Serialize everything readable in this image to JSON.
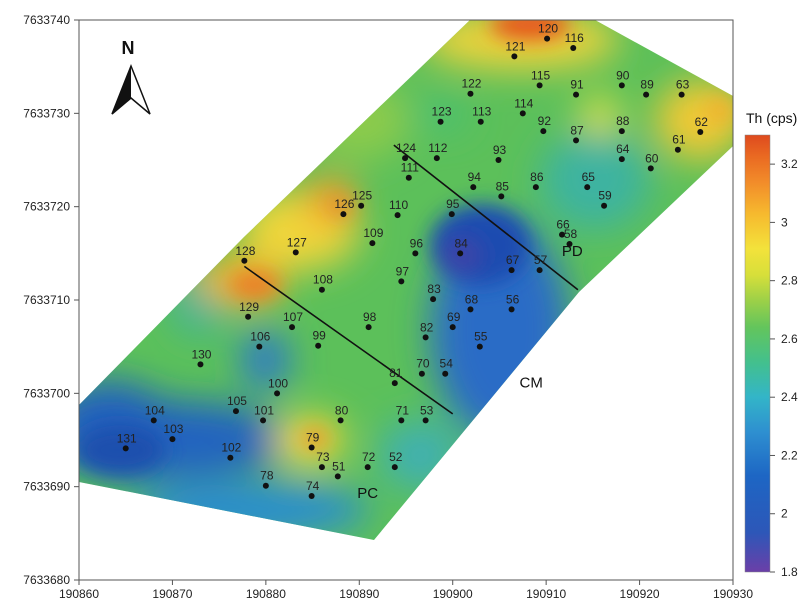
{
  "map": {
    "legend_title": "Th (cps)",
    "north_label": "N",
    "x_ticks": [
      {
        "label": "190860",
        "value": 190860
      },
      {
        "label": "190870",
        "value": 190870
      },
      {
        "label": "190880",
        "value": 190880
      },
      {
        "label": "190890",
        "value": 190890
      },
      {
        "label": "190900",
        "value": 190900
      },
      {
        "label": "190910",
        "value": 190910
      },
      {
        "label": "190920",
        "value": 190920
      },
      {
        "label": "190930",
        "value": 190930
      }
    ],
    "y_ticks": [
      {
        "label": "7633740",
        "value": 7633740
      },
      {
        "label": "7633730",
        "value": 7633730
      },
      {
        "label": "7633720",
        "value": 7633720
      },
      {
        "label": "7633710",
        "value": 7633710
      },
      {
        "label": "7633700",
        "value": 7633700
      },
      {
        "label": "7633690",
        "value": 7633690
      },
      {
        "label": "7633680",
        "value": 7633680
      }
    ],
    "zones": [
      {
        "label": "PD",
        "x": 190912.8,
        "y": 7633714.7
      },
      {
        "label": "CM",
        "x": 190908.4,
        "y": 7633700.6
      },
      {
        "label": "PC",
        "x": 190890.9,
        "y": 7633688.8
      }
    ],
    "colorbar": {
      "min": 1.8,
      "max": 3.3,
      "ticks": [
        {
          "label": "1.8",
          "value": 1.8
        },
        {
          "label": "2",
          "value": 2.0
        },
        {
          "label": "2.2",
          "value": 2.2
        },
        {
          "label": "2.4",
          "value": 2.4
        },
        {
          "label": "2.6",
          "value": 2.6
        },
        {
          "label": "2.8",
          "value": 2.8
        },
        {
          "label": "3",
          "value": 3.0
        },
        {
          "label": "3.2",
          "value": 3.2
        }
      ],
      "colors": [
        "#6b3fa8",
        "#2d57b8",
        "#1d66c4",
        "#2e8fd0",
        "#33b5c8",
        "#43c08d",
        "#63c55c",
        "#9bd048",
        "#d7df3a",
        "#f3e23b",
        "#f6b92e",
        "#f28d2a",
        "#ea6a22",
        "#de4a1e"
      ]
    },
    "profile_lines": [
      {
        "from": {
          "x": 190893.7,
          "y": 7633726.6
        },
        "to": {
          "x": 190913.4,
          "y": 7633711.1
        }
      },
      {
        "from": {
          "x": 190877.7,
          "y": 7633713.6
        },
        "to": {
          "x": 190900.0,
          "y": 7633697.8
        }
      }
    ],
    "points": [
      {
        "id": "120",
        "x": 190910.1,
        "y": 7633738.0
      },
      {
        "id": "121",
        "x": 190906.6,
        "y": 7633736.1
      },
      {
        "id": "116",
        "x": 190912.9,
        "y": 7633737.0
      },
      {
        "id": "115",
        "x": 190909.3,
        "y": 7633733.0
      },
      {
        "id": "91",
        "x": 190913.2,
        "y": 7633732.0
      },
      {
        "id": "90",
        "x": 190918.1,
        "y": 7633733.0
      },
      {
        "id": "89",
        "x": 190920.7,
        "y": 7633732.0
      },
      {
        "id": "63",
        "x": 190924.5,
        "y": 7633732.0
      },
      {
        "id": "122",
        "x": 190901.9,
        "y": 7633732.1
      },
      {
        "id": "114",
        "x": 190907.5,
        "y": 7633730.0
      },
      {
        "id": "113",
        "x": 190903.0,
        "y": 7633729.1
      },
      {
        "id": "123",
        "x": 190898.7,
        "y": 7633729.1
      },
      {
        "id": "92",
        "x": 190909.7,
        "y": 7633728.1
      },
      {
        "id": "88",
        "x": 190918.1,
        "y": 7633728.1
      },
      {
        "id": "62",
        "x": 190926.5,
        "y": 7633728.0
      },
      {
        "id": "87",
        "x": 190913.2,
        "y": 7633727.1
      },
      {
        "id": "61",
        "x": 190924.1,
        "y": 7633726.1
      },
      {
        "id": "64",
        "x": 190918.1,
        "y": 7633725.1
      },
      {
        "id": "60",
        "x": 190921.2,
        "y": 7633724.1
      },
      {
        "id": "124",
        "x": 190894.9,
        "y": 7633725.2
      },
      {
        "id": "112",
        "x": 190898.3,
        "y": 7633725.2
      },
      {
        "id": "93",
        "x": 190904.9,
        "y": 7633725.0
      },
      {
        "id": "111",
        "x": 190895.3,
        "y": 7633723.1
      },
      {
        "id": "94",
        "x": 190902.2,
        "y": 7633722.1
      },
      {
        "id": "86",
        "x": 190908.9,
        "y": 7633722.1
      },
      {
        "id": "65",
        "x": 190914.4,
        "y": 7633722.1
      },
      {
        "id": "85",
        "x": 190905.2,
        "y": 7633721.1
      },
      {
        "id": "59",
        "x": 190916.2,
        "y": 7633720.1
      },
      {
        "id": "125",
        "x": 190890.2,
        "y": 7633720.1
      },
      {
        "id": "126",
        "x": 190888.3,
        "y": 7633719.2
      },
      {
        "id": "95",
        "x": 190899.9,
        "y": 7633719.2
      },
      {
        "id": "110",
        "x": 190894.1,
        "y": 7633719.1
      },
      {
        "id": "66",
        "x": 190911.7,
        "y": 7633717.0
      },
      {
        "id": "58",
        "x": 190912.5,
        "y": 7633716.0
      },
      {
        "id": "109",
        "x": 190891.4,
        "y": 7633716.1
      },
      {
        "id": "96",
        "x": 190896.0,
        "y": 7633715.0
      },
      {
        "id": "84",
        "x": 190900.8,
        "y": 7633715.0
      },
      {
        "id": "128",
        "x": 190877.7,
        "y": 7633714.2
      },
      {
        "id": "127",
        "x": 190883.2,
        "y": 7633715.1
      },
      {
        "id": "57",
        "x": 190909.3,
        "y": 7633713.2
      },
      {
        "id": "67",
        "x": 190906.3,
        "y": 7633713.2
      },
      {
        "id": "97",
        "x": 190894.5,
        "y": 7633712.0
      },
      {
        "id": "108",
        "x": 190886.0,
        "y": 7633711.1
      },
      {
        "id": "83",
        "x": 190897.9,
        "y": 7633710.1
      },
      {
        "id": "68",
        "x": 190901.9,
        "y": 7633709.0
      },
      {
        "id": "56",
        "x": 190906.3,
        "y": 7633709.0
      },
      {
        "id": "129",
        "x": 190878.1,
        "y": 7633708.2
      },
      {
        "id": "98",
        "x": 190891.0,
        "y": 7633707.1
      },
      {
        "id": "107",
        "x": 190882.8,
        "y": 7633707.1
      },
      {
        "id": "69",
        "x": 190900.0,
        "y": 7633707.1
      },
      {
        "id": "82",
        "x": 190897.1,
        "y": 7633706.0
      },
      {
        "id": "99",
        "x": 190885.6,
        "y": 7633705.1
      },
      {
        "id": "106",
        "x": 190879.3,
        "y": 7633705.0
      },
      {
        "id": "55",
        "x": 190902.9,
        "y": 7633705.0
      },
      {
        "id": "130",
        "x": 190873.0,
        "y": 7633703.1
      },
      {
        "id": "70",
        "x": 190896.7,
        "y": 7633702.1
      },
      {
        "id": "54",
        "x": 190899.2,
        "y": 7633702.1
      },
      {
        "id": "81",
        "x": 190893.8,
        "y": 7633701.1
      },
      {
        "id": "100",
        "x": 190881.2,
        "y": 7633700.0
      },
      {
        "id": "104",
        "x": 190868.0,
        "y": 7633697.1
      },
      {
        "id": "105",
        "x": 190876.8,
        "y": 7633698.1
      },
      {
        "id": "101",
        "x": 190879.7,
        "y": 7633697.1
      },
      {
        "id": "80",
        "x": 190888.0,
        "y": 7633697.1
      },
      {
        "id": "71",
        "x": 190894.5,
        "y": 7633697.1
      },
      {
        "id": "53",
        "x": 190897.1,
        "y": 7633697.1
      },
      {
        "id": "103",
        "x": 190870.0,
        "y": 7633695.1
      },
      {
        "id": "131",
        "x": 190865.0,
        "y": 7633694.1
      },
      {
        "id": "102",
        "x": 190876.2,
        "y": 7633693.1
      },
      {
        "id": "79",
        "x": 190884.9,
        "y": 7633694.2
      },
      {
        "id": "73",
        "x": 190886.0,
        "y": 7633692.1
      },
      {
        "id": "72",
        "x": 190890.9,
        "y": 7633692.1
      },
      {
        "id": "52",
        "x": 190893.8,
        "y": 7633692.1
      },
      {
        "id": "51",
        "x": 190887.7,
        "y": 7633691.1
      },
      {
        "id": "78",
        "x": 190880.0,
        "y": 7633690.1
      },
      {
        "id": "74",
        "x": 190884.9,
        "y": 7633689.0
      }
    ]
  }
}
